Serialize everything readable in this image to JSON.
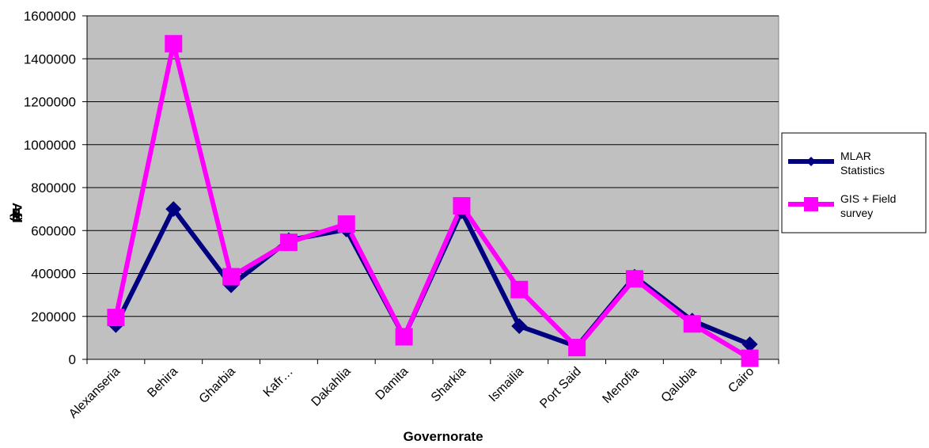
{
  "chart_data": {
    "type": "line",
    "xlabel": "Governorate",
    "ylabel": "Area (fed.)",
    "categories": [
      "Alexanseria",
      "Behira",
      "Gharbia",
      "Kafr…",
      "Dakahlia",
      "Damita",
      "Sharkia",
      "Ismailia",
      "Port Said",
      "Menofia",
      "Qalubia",
      "Cairo"
    ],
    "ylim": [
      0,
      1600000
    ],
    "yticks": [
      "0",
      "200000",
      "400000",
      "600000",
      "800000",
      "1000000",
      "1200000",
      "1400000",
      "1600000"
    ],
    "grid": true,
    "legend_position": "right",
    "series": [
      {
        "name": "MLAR Statistics",
        "legend_lines": [
          "MLAR",
          "Statistics"
        ],
        "color": "#000080",
        "marker": "diamond",
        "values": [
          160000,
          700000,
          345000,
          555000,
          605000,
          105000,
          690000,
          155000,
          60000,
          385000,
          180000,
          70000
        ]
      },
      {
        "name": "GIS + Field survey",
        "legend_lines": [
          "GIS + Field",
          "survey"
        ],
        "color": "#ff00ff",
        "marker": "square",
        "values": [
          195000,
          1470000,
          385000,
          545000,
          630000,
          105000,
          715000,
          325000,
          55000,
          375000,
          165000,
          5000
        ]
      }
    ]
  }
}
